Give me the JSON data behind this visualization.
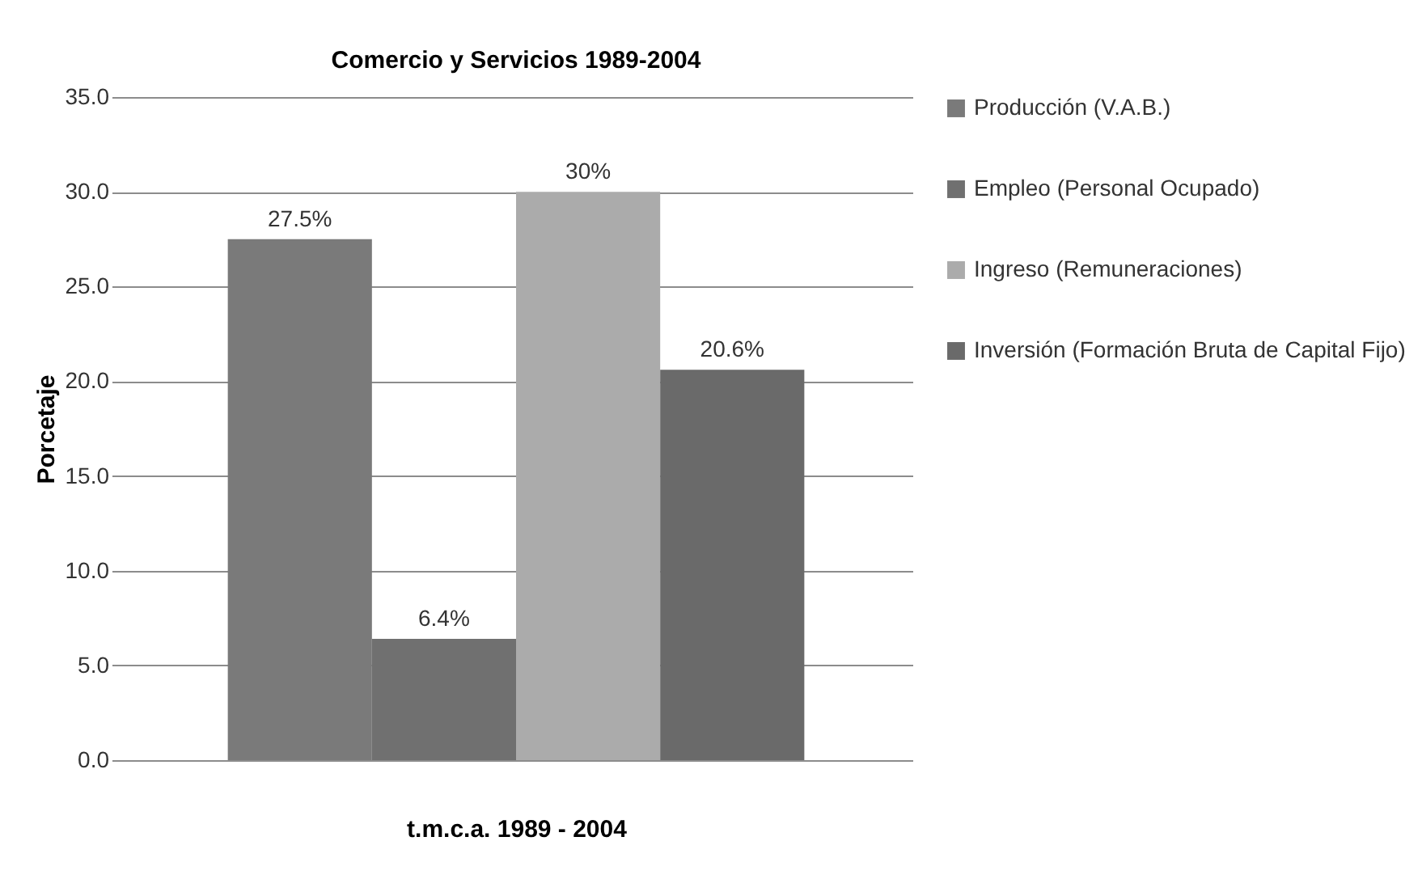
{
  "chart_data": {
    "type": "bar",
    "title": "Comercio y Servicios 1989-2004",
    "xlabel": "t.m.c.a. 1989 - 2004",
    "ylabel": "Porcetaje",
    "categories": [
      null
    ],
    "series": [
      {
        "name": "Producción (V.A.B.)",
        "color": "#7a7a7a",
        "values": [
          27.5
        ],
        "value_labels": [
          "27.5%"
        ]
      },
      {
        "name": "Empleo (Personal Ocupado)",
        "color": "#707070",
        "values": [
          6.4
        ],
        "value_labels": [
          "6.4%"
        ]
      },
      {
        "name": "Ingreso (Remuneraciones)",
        "color": "#ababab",
        "values": [
          30
        ],
        "value_labels": [
          "30%"
        ]
      },
      {
        "name": "Inversión (Formación Bruta de Capital  Fijo)",
        "color": "#6a6a6a",
        "values": [
          20.6
        ],
        "value_labels": [
          "20.6%"
        ]
      }
    ],
    "ylim": [
      0,
      35
    ],
    "yticks": [
      {
        "value": 0,
        "label": "0.0"
      },
      {
        "value": 5,
        "label": "5.0"
      },
      {
        "value": 10,
        "label": "10.0"
      },
      {
        "value": 15,
        "label": "15.0"
      },
      {
        "value": 20,
        "label": "20.0"
      },
      {
        "value": 25,
        "label": "25.0"
      },
      {
        "value": 30,
        "label": "30.0"
      },
      {
        "value": 35,
        "label": "35.0"
      }
    ],
    "grid": "y",
    "legend": "right"
  }
}
